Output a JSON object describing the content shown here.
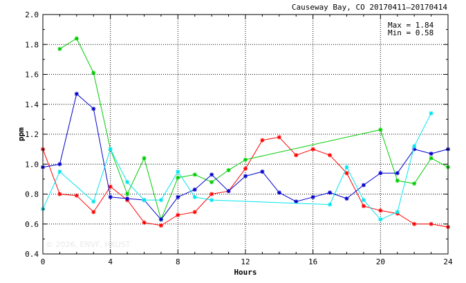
{
  "chart_data": {
    "type": "line",
    "title": "Causeway Bay, CO 20170411–20170414",
    "annotations": {
      "max": "Max = 1.84",
      "min": "Min = 0.58"
    },
    "watermark": "© 2026, ENVF, HKUST",
    "xlabel": "Hours",
    "ylabel": "ppm",
    "xlim": [
      0,
      24
    ],
    "ylim": [
      0.4,
      2.0
    ],
    "xticks": [
      0,
      4,
      8,
      12,
      16,
      20,
      24
    ],
    "yticks": [
      0.4,
      0.6,
      0.8,
      1.0,
      1.2,
      1.4,
      1.6,
      1.8,
      2.0
    ],
    "ytick_labels": [
      "0.4",
      "0.6",
      "0.8",
      "1.0",
      "1.2",
      "1.4",
      "1.6",
      "1.8",
      "2.0"
    ],
    "grid": "dotted",
    "series": [
      {
        "color": "#ff0000",
        "x": [
          0,
          1,
          2,
          3,
          4,
          5,
          6,
          7,
          8,
          9,
          10,
          11,
          12,
          13,
          14,
          15,
          16,
          17,
          18,
          19,
          20,
          21,
          22,
          23,
          24
        ],
        "y": [
          1.1,
          0.8,
          0.79,
          0.68,
          0.85,
          0.76,
          0.61,
          0.59,
          0.66,
          0.68,
          0.8,
          0.82,
          0.97,
          1.16,
          1.18,
          1.06,
          1.1,
          1.06,
          0.94,
          0.72,
          0.69,
          0.67,
          0.6,
          0.6,
          0.58
        ]
      },
      {
        "color": "#00cc00",
        "x": [
          1,
          2,
          3,
          4,
          5,
          6,
          7,
          8,
          9,
          10,
          11,
          12,
          20,
          21,
          22,
          23,
          24
        ],
        "y": [
          1.77,
          1.84,
          1.61,
          1.1,
          0.8,
          1.04,
          0.63,
          0.91,
          0.93,
          0.88,
          0.96,
          1.03,
          1.23,
          0.89,
          0.87,
          1.04,
          0.98
        ]
      },
      {
        "color": "#0000cc",
        "x": [
          0,
          1,
          2,
          3,
          4,
          5,
          6,
          7,
          8,
          9,
          10,
          11,
          12,
          13,
          14,
          15,
          16,
          17,
          18,
          19,
          20,
          21,
          22,
          23,
          24
        ],
        "y": [
          0.98,
          1.0,
          1.47,
          1.37,
          0.78,
          0.77,
          0.76,
          0.63,
          0.78,
          0.83,
          0.93,
          0.82,
          0.92,
          0.95,
          0.81,
          0.75,
          0.78,
          0.81,
          0.77,
          0.86,
          0.94,
          0.94,
          1.1,
          1.07,
          1.1
        ]
      },
      {
        "color": "#00e5ee",
        "x": [
          0,
          1,
          3,
          4,
          5,
          6,
          7,
          8,
          9,
          10,
          17,
          18,
          19,
          20,
          21,
          22,
          23
        ],
        "y": [
          0.7,
          0.95,
          0.75,
          1.1,
          0.88,
          0.76,
          0.76,
          0.95,
          0.78,
          0.76,
          0.73,
          0.98,
          0.76,
          0.63,
          0.68,
          1.12,
          1.34
        ]
      }
    ]
  }
}
